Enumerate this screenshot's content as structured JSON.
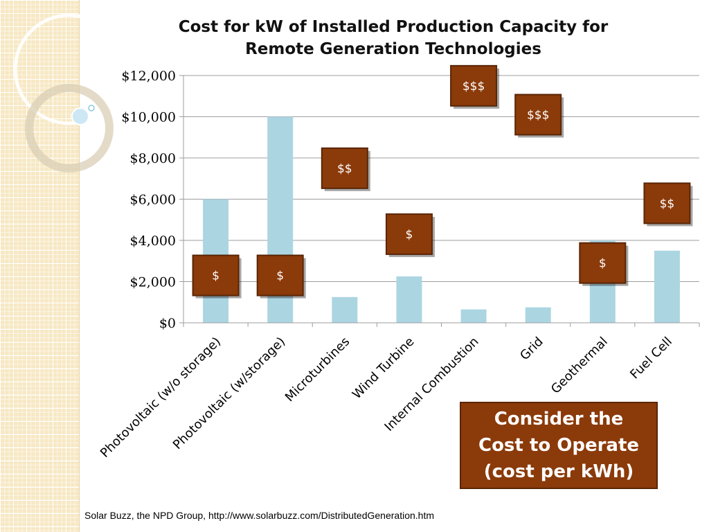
{
  "chart_data": {
    "type": "bar",
    "title_lines": [
      "Cost for kW of Installed Production Capacity for",
      "Remote Generation Technologies"
    ],
    "categories": [
      "Photovoltaic (w/o storage)",
      "Photovoltaic (w/storage)",
      "Microturbines",
      "Wind Turbine",
      "Internal Combustion",
      "Grid",
      "Geothermal",
      "Fuel Cell"
    ],
    "values": [
      6000,
      10000,
      1250,
      2250,
      650,
      750,
      4000,
      3500
    ],
    "ylim": [
      0,
      12000
    ],
    "yticks": [
      "$0",
      "$2,000",
      "$4,000",
      "$6,000",
      "$8,000",
      "$10,000",
      "$12,000"
    ],
    "ytick_values": [
      0,
      2000,
      4000,
      6000,
      8000,
      10000,
      12000
    ],
    "operating_cost_labels": [
      {
        "category": "Photovoltaic (w/o storage)",
        "label": "$",
        "value": 2300
      },
      {
        "category": "Photovoltaic (w/storage)",
        "label": "$",
        "value": 2300
      },
      {
        "category": "Microturbines",
        "label": "$$",
        "value": 7500
      },
      {
        "category": "Wind Turbine",
        "label": "$",
        "value": 4300
      },
      {
        "category": "Internal Combustion",
        "label": "$$$",
        "value": 11500
      },
      {
        "category": "Grid",
        "label": "$$$",
        "value": 10100
      },
      {
        "category": "Geothermal",
        "label": "$",
        "value": 2900
      },
      {
        "category": "Fuel Cell",
        "label": "$$",
        "value": 5800
      }
    ],
    "grid": true,
    "colors": {
      "bar": "#acd5e2",
      "label_box": "#8b3a0a",
      "label_border": "#5a2606",
      "grid": "#9e9e9e"
    }
  },
  "note": {
    "text": "Consider the\nCost to Operate\n(cost per kWh)"
  },
  "source": "Solar Buzz, the NPD Group, http://www.solarbuzz.com/DistributedGeneration.htm"
}
